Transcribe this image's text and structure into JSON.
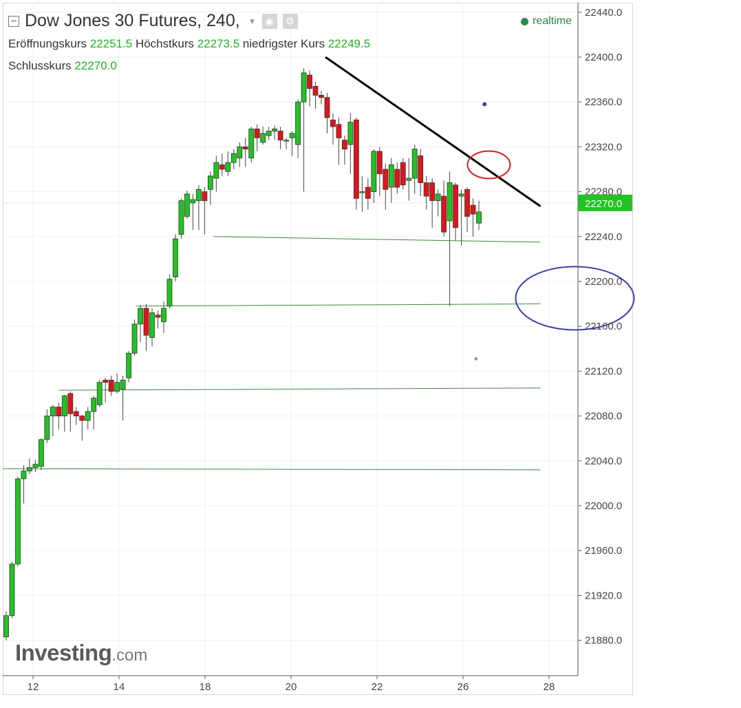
{
  "header": {
    "title": "Dow Jones 30 Futures, 240,",
    "open_label": "Eröffnungskurs",
    "open_value": "22251.5",
    "high_label": "Höchstkurs",
    "high_value": "22273.5",
    "low_label": "niedrigster Kurs",
    "low_value": "22249.5",
    "close_label": "Schlusskurs",
    "close_value": "22270.0",
    "realtime_label": "realtime"
  },
  "logo": {
    "brand": "Investing",
    "suffix": ".com"
  },
  "icons": [
    "collapse-icon",
    "dropdown-arrow-icon",
    "visibility-icon",
    "settings-icon",
    "realtime-dot-icon"
  ],
  "colors": {
    "up": "#22c322",
    "down": "#e0151b",
    "wick": "#444444",
    "price_tag": "#22c322",
    "support_line": "#3d8a3d",
    "trend_line": "#000000",
    "red_ellipse": "#d42020",
    "blue_ellipse": "#3c3caa"
  },
  "chart_data": {
    "type": "candlestick",
    "instrument": "Dow Jones 30 Futures",
    "interval": "240",
    "x_ticks": [
      "12",
      "14",
      "18",
      "20",
      "22",
      "26",
      "28"
    ],
    "y_ticks": [
      "22440.0",
      "22400.0",
      "22360.0",
      "22320.0",
      "22280.0",
      "22240.0",
      "22200.0",
      "22160.0",
      "22120.0",
      "22080.0",
      "22040.0",
      "22000.0",
      "21960.0",
      "21920.0",
      "21880.0"
    ],
    "ylim": [
      21850,
      22460
    ],
    "grid": true,
    "current_price": "22270.0",
    "candles": [
      [
        21883,
        21902,
        21880,
        21906
      ],
      [
        21902,
        21948,
        21900,
        21950
      ],
      [
        21948,
        22024,
        21946,
        22026
      ],
      [
        22024,
        22031,
        22002,
        22036
      ],
      [
        22031,
        22034,
        22028,
        22042
      ],
      [
        22034,
        22037,
        22030,
        22041
      ],
      [
        22035,
        22059,
        22032,
        22060
      ],
      [
        22059,
        22080,
        22056,
        22086
      ],
      [
        22080,
        22088,
        22062,
        22090
      ],
      [
        22088,
        22080,
        22068,
        22092
      ],
      [
        22080,
        22098,
        22066,
        22099
      ],
      [
        22100,
        22082,
        22066,
        22102
      ],
      [
        22084,
        22080,
        22072,
        22088
      ],
      [
        22080,
        22076,
        22058,
        22081
      ],
      [
        22076,
        22084,
        22068,
        22088
      ],
      [
        22084,
        22096,
        22068,
        22098
      ],
      [
        22090,
        22110,
        22088,
        22112
      ],
      [
        22112,
        22110,
        22092,
        22114
      ],
      [
        22112,
        22102,
        22098,
        22116
      ],
      [
        22102,
        22110,
        22100,
        22118
      ],
      [
        22104,
        22112,
        22076,
        22116
      ],
      [
        22114,
        22136,
        22110,
        22138
      ],
      [
        22136,
        22162,
        22134,
        22166
      ],
      [
        22162,
        22176,
        22146,
        22179
      ],
      [
        22176,
        22152,
        22138,
        22180
      ],
      [
        22150,
        22172,
        22142,
        22176
      ],
      [
        22170,
        22168,
        22158,
        22174
      ],
      [
        22164,
        22176,
        22154,
        22182
      ],
      [
        22178,
        22202,
        22176,
        22206
      ],
      [
        22204,
        22238,
        22200,
        22242
      ],
      [
        22242,
        22272,
        22238,
        22274
      ],
      [
        22258,
        22278,
        22256,
        22281
      ],
      [
        22270,
        22273,
        22246,
        22278
      ],
      [
        22272,
        22282,
        22246,
        22286
      ],
      [
        22280,
        22272,
        22242,
        22284
      ],
      [
        22282,
        22294,
        22268,
        22298
      ],
      [
        22292,
        22306,
        22280,
        22312
      ],
      [
        22304,
        22300,
        22294,
        22314
      ],
      [
        22298,
        22306,
        22294,
        22316
      ],
      [
        22306,
        22314,
        22300,
        22318
      ],
      [
        22310,
        22320,
        22302,
        22324
      ],
      [
        22320,
        22318,
        22302,
        22328
      ],
      [
        22310,
        22336,
        22306,
        22338
      ],
      [
        22336,
        22328,
        22316,
        22340
      ],
      [
        22324,
        22332,
        22322,
        22338
      ],
      [
        22330,
        22334,
        22326,
        22338
      ],
      [
        22334,
        22336,
        22326,
        22339
      ],
      [
        22334,
        22326,
        22318,
        22338
      ],
      [
        22326,
        22326,
        22318,
        22328
      ],
      [
        22328,
        22332,
        22312,
        22334
      ],
      [
        22322,
        22360,
        22310,
        22362
      ],
      [
        22360,
        22386,
        22280,
        22390
      ],
      [
        22384,
        22372,
        22356,
        22388
      ],
      [
        22374,
        22366,
        22354,
        22378
      ],
      [
        22366,
        22364,
        22358,
        22370
      ],
      [
        22364,
        22346,
        22332,
        22368
      ],
      [
        22344,
        22338,
        22322,
        22350
      ],
      [
        22340,
        22328,
        22304,
        22346
      ],
      [
        22326,
        22318,
        22304,
        22330
      ],
      [
        22322,
        22342,
        22296,
        22350
      ],
      [
        22344,
        22274,
        22264,
        22346
      ],
      [
        22280,
        22280,
        22262,
        22294
      ],
      [
        22284,
        22274,
        22264,
        22292
      ],
      [
        22280,
        22316,
        22270,
        22318
      ],
      [
        22316,
        22296,
        22276,
        22320
      ],
      [
        22300,
        22282,
        22264,
        22305
      ],
      [
        22284,
        22304,
        22270,
        22310
      ],
      [
        22300,
        22284,
        22278,
        22306
      ],
      [
        22306,
        22286,
        22282,
        22310
      ],
      [
        22290,
        22292,
        22272,
        22310
      ],
      [
        22292,
        22318,
        22278,
        22322
      ],
      [
        22312,
        22288,
        22276,
        22318
      ],
      [
        22288,
        22276,
        22264,
        22294
      ],
      [
        22288,
        22272,
        22248,
        22292
      ],
      [
        22272,
        22278,
        22258,
        22282
      ],
      [
        22276,
        22244,
        22240,
        22290
      ],
      [
        22254,
        22288,
        22178,
        22298
      ],
      [
        22286,
        22248,
        22236,
        22288
      ],
      [
        22276,
        22278,
        22232,
        22282
      ],
      [
        22282,
        22258,
        22244,
        22284
      ],
      [
        22268,
        22260,
        22240,
        22274
      ],
      [
        22252,
        22262,
        22246,
        22272
      ]
    ],
    "annotations": {
      "trend_line": [
        [
          20.8,
          22400
        ],
        [
          27.8,
          22267
        ]
      ],
      "support_lines": [
        [
          [
            18.2,
            22240
          ],
          [
            27.8,
            22235
          ]
        ],
        [
          [
            14.8,
            22178
          ],
          [
            27.8,
            22180
          ]
        ],
        [
          [
            12.6,
            22103
          ],
          [
            27.8,
            22105
          ]
        ],
        [
          [
            11.3,
            22033
          ],
          [
            27.8,
            22032
          ]
        ]
      ],
      "red_ellipse_center": [
        26.6,
        22304
      ],
      "blue_ellipse_center": [
        28.6,
        22185
      ],
      "marker_dots": [
        [
          26.5,
          22358
        ],
        [
          26.3,
          22131
        ]
      ]
    }
  }
}
